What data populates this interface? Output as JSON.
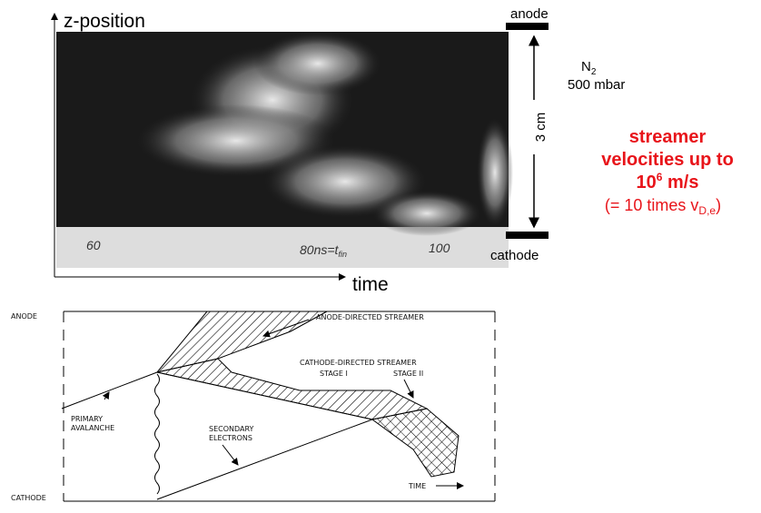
{
  "photo": {
    "y_axis_label": "z-position",
    "x_axis_label": "time",
    "tick_labels": [
      "60",
      "100"
    ],
    "tfin_label": {
      "text": "80ns=t",
      "sub": "fin"
    },
    "anode": "anode",
    "cathode": "cathode",
    "gap": "3 cm",
    "gas": {
      "symbol": "N",
      "sub": "2",
      "pressure": "500 mbar"
    }
  },
  "note": {
    "line1": "streamer",
    "line2": "velocities up to",
    "line3": {
      "base": "10",
      "sup": "6",
      "rest": " m/s"
    },
    "line4": {
      "text": "(= 10 times v",
      "sub": "D,e",
      "end": ")"
    }
  },
  "diagram": {
    "anode": "ANODE",
    "cathode": "CATHODE",
    "anode_streamer": "ANODE-DIRECTED STREAMER",
    "cathode_streamer": "CATHODE-DIRECTED STREAMER",
    "stage1": "STAGE I",
    "stage2": "STAGE II",
    "primary": [
      "PRIMARY",
      "AVALANCHE"
    ],
    "secondary": [
      "SECONDARY",
      "ELECTRONS"
    ],
    "time": "TIME"
  }
}
